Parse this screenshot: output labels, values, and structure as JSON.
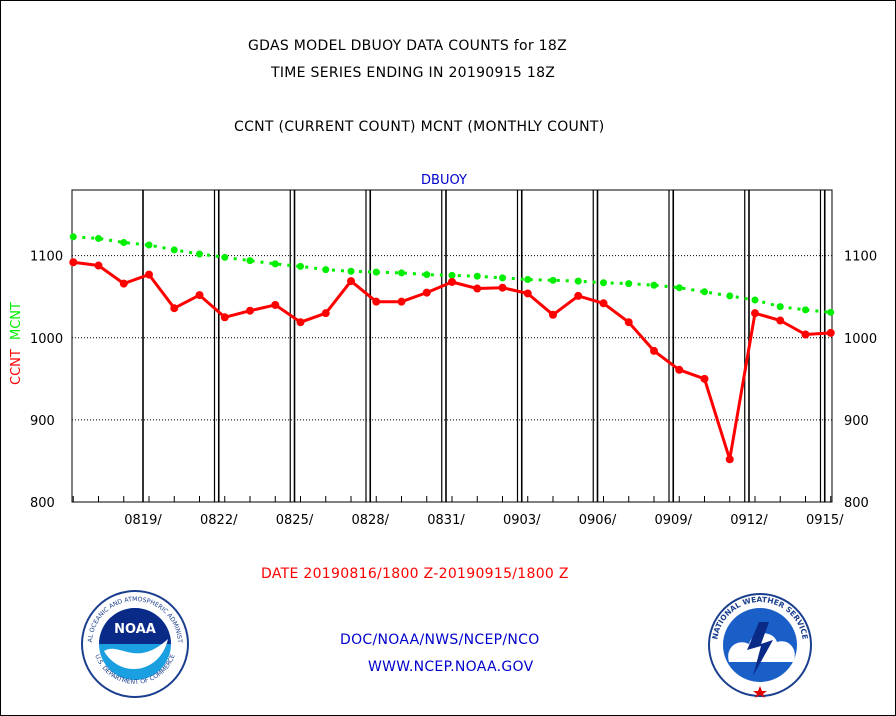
{
  "header": {
    "title_line1": "GDAS MODEL DBUOY DATA COUNTS for 18Z",
    "title_line2": "TIME SERIES ENDING IN 20190915 18Z",
    "subtitle": "CCNT (CURRENT COUNT) MCNT (MONTHLY COUNT)"
  },
  "chart_data": {
    "type": "line",
    "title": "DBUOY",
    "ylabel_ccnt": "CCNT",
    "ylabel_mcnt": "MCNT",
    "xlabel": "DATE 20190816/1800 Z-20190915/1800 Z",
    "ylim": [
      800,
      1180
    ],
    "xlim_days": [
      0,
      30
    ],
    "y_ticks": [
      800,
      900,
      1000,
      1100
    ],
    "y_tick_labels": [
      "800",
      "900",
      "1000",
      "1100"
    ],
    "x_tick_labels": [
      "0819/",
      "0822/",
      "0825/",
      "0828/",
      "0831/",
      "0903/",
      "0906/",
      "0909/",
      "0912/",
      "0915/"
    ],
    "grid": true,
    "colors": {
      "ccnt": "#ff0000",
      "mcnt": "#00ee00",
      "title": "#0000cc"
    },
    "series": [
      {
        "name": "CCNT",
        "x": [
          "0816",
          "0817",
          "0818",
          "0819",
          "0820",
          "0821",
          "0822",
          "0823",
          "0824",
          "0825",
          "0826",
          "0827",
          "0828",
          "0829",
          "0830",
          "0831",
          "0901",
          "0902",
          "0903",
          "0904",
          "0905",
          "0906",
          "0907",
          "0908",
          "0909",
          "0910",
          "0911",
          "0912",
          "0913",
          "0914",
          "0915"
        ],
        "values": [
          1092,
          1088,
          1066,
          1077,
          1036,
          1052,
          1025,
          1033,
          1040,
          1019,
          1030,
          1069,
          1044,
          1044,
          1055,
          1068,
          1060,
          1061,
          1054,
          1028,
          1051,
          1042,
          1019,
          984,
          961,
          950,
          852,
          1030,
          1021,
          1004,
          1006
        ]
      },
      {
        "name": "MCNT",
        "x": [
          "0816",
          "0817",
          "0818",
          "0819",
          "0820",
          "0821",
          "0822",
          "0823",
          "0824",
          "0825",
          "0826",
          "0827",
          "0828",
          "0829",
          "0830",
          "0831",
          "0901",
          "0902",
          "0903",
          "0904",
          "0905",
          "0906",
          "0907",
          "0908",
          "0909",
          "0910",
          "0911",
          "0912",
          "0913",
          "0914",
          "0915"
        ],
        "values": [
          1123,
          1121,
          1116,
          1113,
          1107,
          1102,
          1098,
          1094,
          1090,
          1087,
          1083,
          1081,
          1080,
          1079,
          1077,
          1076,
          1075,
          1073,
          1071,
          1070,
          1069,
          1067,
          1066,
          1064,
          1061,
          1056,
          1051,
          1046,
          1038,
          1034,
          1031
        ]
      }
    ]
  },
  "footer": {
    "org_path": "DOC/NOAA/NWS/NCEP/NCO",
    "website": "WWW.NCEP.NOAA.GOV",
    "noaa_logo_text": "NOAA",
    "noaa_ring_text": "NATIONAL OCEANIC AND ATMOSPHERIC ADMINISTRATION",
    "noaa_ring_bottom": "U.S. DEPARTMENT OF COMMERCE",
    "nws_ring_text": "NATIONAL WEATHER SERVICE"
  }
}
